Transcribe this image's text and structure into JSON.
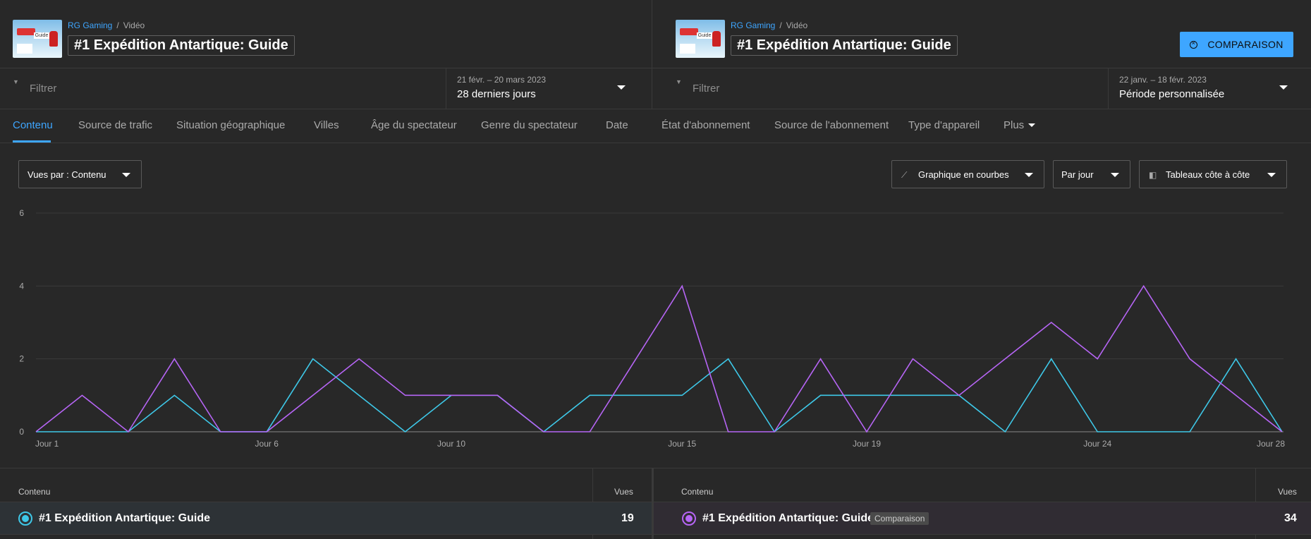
{
  "left": {
    "channel": "RG Gaming",
    "type": "Vidéo",
    "title": "#1 Expédition Antartique: Guide",
    "filter_placeholder": "Filtrer",
    "date_range": "21 févr. – 20 mars 2023",
    "period": "28 derniers jours"
  },
  "right": {
    "channel": "RG Gaming",
    "type": "Vidéo",
    "title": "#1 Expédition Antartique: Guide",
    "filter_placeholder": "Filtrer",
    "date_range": "22 janv. – 18 févr. 2023",
    "period": "Période personnalisée"
  },
  "compare_button": "COMPARAISON",
  "tabs": [
    "Contenu",
    "Source de trafic",
    "Situation géographique",
    "Villes",
    "Âge du spectateur",
    "Genre du spectateur",
    "Date",
    "État d'abonnement",
    "Source de l'abonnement",
    "Type d'appareil",
    "Plus"
  ],
  "controls": {
    "metric": "Vues par : Contenu",
    "chart_type": "Graphique en courbes",
    "interval": "Par jour",
    "layout": "Tableaux côte à côte"
  },
  "table": {
    "col_content": "Contenu",
    "col_views": "Vues",
    "left_row": {
      "title": "#1 Expédition Antartique: Guide",
      "views": "19"
    },
    "right_row": {
      "title": "#1 Expédition Antartique: Guide",
      "badge": "Comparaison",
      "views": "34"
    }
  },
  "colors": {
    "primary": "#3ea6ff",
    "series_current": "#3ec8e8",
    "series_compare": "#b665f5"
  },
  "chart_data": {
    "type": "line",
    "x": [
      1,
      2,
      3,
      4,
      5,
      6,
      7,
      8,
      9,
      10,
      11,
      12,
      13,
      14,
      15,
      16,
      17,
      18,
      19,
      20,
      21,
      22,
      23,
      24,
      25,
      26,
      27,
      28
    ],
    "x_tick_labels": [
      "Jour 1",
      "Jour 6",
      "Jour 10",
      "Jour 15",
      "Jour 19",
      "Jour 24",
      "Jour 28"
    ],
    "x_tick_days": [
      1,
      6,
      10,
      15,
      19,
      24,
      28
    ],
    "ylim": [
      0,
      6
    ],
    "y_ticks": [
      0,
      2,
      4,
      6
    ],
    "grid": true,
    "series": [
      {
        "color": "#3ec8e8",
        "values": [
          0,
          0,
          0,
          1,
          0,
          0,
          2,
          1,
          0,
          1,
          1,
          0,
          1,
          1,
          1,
          2,
          0,
          1,
          1,
          1,
          1,
          0,
          2,
          0,
          0,
          0,
          2,
          0
        ]
      },
      {
        "color": "#b665f5",
        "values": [
          0,
          1,
          0,
          2,
          0,
          0,
          1,
          2,
          1,
          1,
          1,
          0,
          0,
          2,
          4,
          0,
          0,
          2,
          0,
          2,
          1,
          2,
          3,
          2,
          4,
          2,
          1,
          0
        ]
      }
    ]
  }
}
